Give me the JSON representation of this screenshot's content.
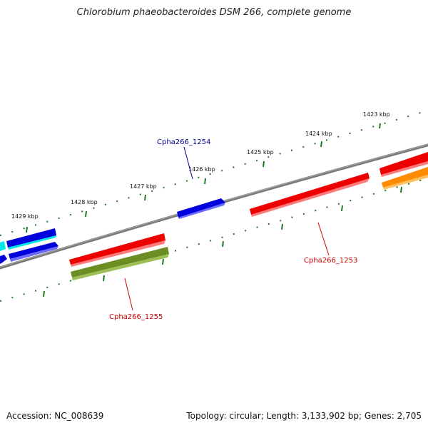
{
  "title": "Chlorobium phaeobacteroides DSM 266, complete genome",
  "ticks": [
    {
      "label": "1423 kbp"
    },
    {
      "label": "1424 kbp"
    },
    {
      "label": "1425 kbp"
    },
    {
      "label": "1426 kbp"
    },
    {
      "label": "1427 kbp"
    },
    {
      "label": "1428 kbp"
    },
    {
      "label": "1429 kbp"
    }
  ],
  "gene_labels": [
    {
      "id": "Cpha266_1254",
      "color": "#00008b"
    },
    {
      "id": "Cpha266_1253",
      "color": "#cc0000"
    },
    {
      "id": "Cpha266_1255",
      "color": "#cc0000"
    }
  ],
  "colors": {
    "backbone": "#808080",
    "tick": "#1f7a1f",
    "gene_blue": "#0000dd",
    "gene_cyan": "#00e5e5",
    "gene_red": "#ee0000",
    "gene_olive": "#6b8e23",
    "gene_orange": "#ff8c00"
  },
  "footer": {
    "accession": "Accession: NC_008639",
    "summary": "Topology: circular; Length: 3,133,902 bp; Genes: 2,705"
  }
}
